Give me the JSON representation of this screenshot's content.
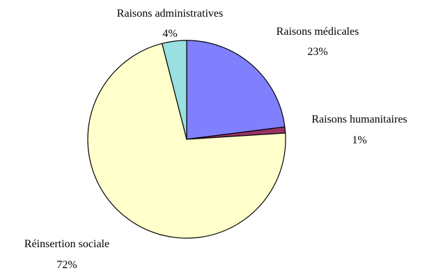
{
  "chart_data": {
    "type": "pie",
    "title": "",
    "slices": [
      {
        "label": "Raisons médicales",
        "value": 23,
        "pct_label": "23%",
        "color": "#8080ff"
      },
      {
        "label": "Raisons humanitaires",
        "value": 1,
        "pct_label": "1%",
        "color": "#993366"
      },
      {
        "label": "Réinsertion sociale",
        "value": 72,
        "pct_label": "72%",
        "color": "#ffffcc"
      },
      {
        "label": "Raisons administratives",
        "value": 4,
        "pct_label": "4%",
        "color": "#99e0e0"
      }
    ],
    "legend": "none",
    "start": "top",
    "direction": "clockwise"
  }
}
